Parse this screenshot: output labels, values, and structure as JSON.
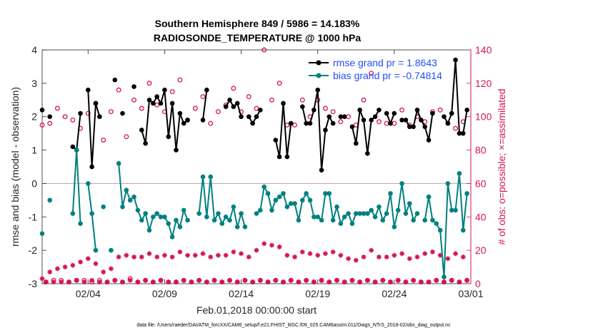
{
  "chart_data": {
    "type": "line",
    "title": "Southern Hemisphere 849 / 5986 = 14.183%",
    "subtitle": "RADIOSONDE_TEMPERATURE @ 1000 hPa",
    "xlabel": "Feb.01,2018 00:00:00 start",
    "ylabel_left": "rmse and bias (model - observation)",
    "ylabel_right": "# of obs: o=possible; ×=assimilated",
    "footer": "data file: /Users/raeder/DAI/ATM_forcXX/CAM6_setup/f.e21.FHIST_BGC.f09_025.CAM6assim.011/Diags_NTrS_2018-02/obs_diag_output.nc",
    "xlim": [
      0,
      28
    ],
    "ylim_left": [
      -3,
      4
    ],
    "ylim_right": [
      0,
      140
    ],
    "xticks": [
      3,
      8,
      13,
      18,
      23,
      28
    ],
    "xtick_labels": [
      "02/04",
      "02/09",
      "02/14",
      "02/19",
      "02/24",
      "03/01"
    ],
    "yticks_left": [
      -3,
      -2,
      -1,
      0,
      1,
      2,
      3,
      4
    ],
    "yticks_right": [
      0,
      20,
      40,
      60,
      80,
      100,
      120,
      140
    ],
    "reference_line_y": 0,
    "legend": [
      {
        "name": "rmse  grand pr = 1.8643",
        "color": "#000000"
      },
      {
        "name": "bias  grand pr = -0.74814",
        "color": "#008080"
      }
    ],
    "series": [
      {
        "name": "rmse",
        "color": "#000000",
        "x": [
          0.0,
          0.25,
          0.5,
          0.75,
          1.0,
          1.25,
          1.5,
          1.75,
          2.0,
          2.25,
          2.5,
          2.75,
          3.0,
          3.25,
          3.5,
          3.75,
          4.0,
          4.25,
          4.5,
          4.75,
          5.0,
          5.25,
          5.5,
          5.75,
          6.0,
          6.25,
          6.5,
          6.75,
          7.0,
          7.25,
          7.5,
          7.75,
          8.0,
          8.25,
          8.5,
          8.75,
          9.0,
          9.25,
          9.5,
          9.75,
          10.0,
          10.25,
          10.5,
          10.75,
          11.0,
          11.25,
          11.5,
          11.75,
          12.0,
          12.25,
          12.5,
          12.75,
          13.0,
          13.25,
          13.5,
          13.75,
          14.0,
          14.25,
          14.5,
          14.75,
          15.0,
          15.25,
          15.5,
          15.75,
          16.0,
          16.25,
          16.5,
          16.75,
          17.0,
          17.25,
          17.5,
          17.75,
          18.0,
          18.25,
          18.5,
          18.75,
          19.0,
          19.25,
          19.5,
          19.75,
          20.0,
          20.25,
          20.5,
          20.75,
          21.0,
          21.25,
          21.5,
          21.75,
          22.0,
          22.25,
          22.5,
          22.75,
          23.0,
          23.25,
          23.5,
          23.75,
          24.0,
          24.25,
          24.5,
          24.75,
          25.0,
          25.25,
          25.5,
          25.75,
          26.0,
          26.25,
          26.5,
          26.75,
          27.0,
          27.25,
          27.5,
          27.75
        ],
        "values": [
          2.2,
          null,
          2.0,
          null,
          null,
          null,
          null,
          null,
          1.1,
          1.0,
          2.1,
          null,
          2.8,
          0.5,
          2.4,
          2.0,
          null,
          null,
          null,
          3.1,
          null,
          2.1,
          null,
          null,
          2.9,
          null,
          1.6,
          1.2,
          2.5,
          2.4,
          2.6,
          2.4,
          2.8,
          1.4,
          2.4,
          1.0,
          2.1,
          1.8,
          1.9,
          null,
          null,
          null,
          1.9,
          2.8,
          null,
          null,
          null,
          null,
          2.3,
          2.5,
          2.3,
          2.4,
          2.0,
          null,
          2.0,
          1.8,
          2.0,
          2.2,
          null,
          null,
          null,
          1.3,
          0.8,
          2.4,
          0.8,
          1.8,
          null,
          null,
          2.3,
          1.8,
          1.8,
          2.2,
          2.8,
          0.4,
          1.6,
          2.0,
          1.8,
          null,
          2.0,
          2.0,
          null,
          1.7,
          1.2,
          2.2,
          1.9,
          0.9,
          1.9,
          2.0,
          2.2,
          null,
          2.1,
          1.8,
          2.1,
          null,
          1.9,
          1.9,
          1.7,
          1.7,
          2.2,
          1.9,
          1.7,
          1.3,
          2.1,
          null,
          null,
          2.0,
          1.8,
          2.1,
          3.7,
          1.5,
          1.5,
          2.2
        ]
      },
      {
        "name": "bias",
        "color": "#008080",
        "x": [
          0.0,
          0.25,
          0.5,
          0.75,
          1.0,
          1.25,
          1.5,
          1.75,
          2.0,
          2.25,
          2.5,
          2.75,
          3.0,
          3.25,
          3.5,
          3.75,
          4.0,
          4.25,
          4.5,
          4.75,
          5.0,
          5.25,
          5.5,
          5.75,
          6.0,
          6.25,
          6.5,
          6.75,
          7.0,
          7.25,
          7.5,
          7.75,
          8.0,
          8.25,
          8.5,
          8.75,
          9.0,
          9.25,
          9.5,
          9.75,
          10.0,
          10.25,
          10.5,
          10.75,
          11.0,
          11.25,
          11.5,
          11.75,
          12.0,
          12.25,
          12.5,
          12.75,
          13.0,
          13.25,
          13.5,
          13.75,
          14.0,
          14.25,
          14.5,
          14.75,
          15.0,
          15.25,
          15.5,
          15.75,
          16.0,
          16.25,
          16.5,
          16.75,
          17.0,
          17.25,
          17.5,
          17.75,
          18.0,
          18.25,
          18.5,
          18.75,
          19.0,
          19.25,
          19.5,
          19.75,
          20.0,
          20.25,
          20.5,
          20.75,
          21.0,
          21.25,
          21.5,
          21.75,
          22.0,
          22.25,
          22.5,
          22.75,
          23.0,
          23.25,
          23.5,
          23.75,
          24.0,
          24.25,
          24.5,
          24.75,
          25.0,
          25.25,
          25.5,
          25.75,
          26.0,
          26.25,
          26.5,
          26.75,
          27.0,
          27.25,
          27.5,
          27.75
        ],
        "values": [
          -1.5,
          null,
          -0.5,
          null,
          null,
          null,
          null,
          null,
          -0.9,
          1.0,
          -1.2,
          null,
          0.0,
          -0.9,
          -2.0,
          null,
          -0.7,
          null,
          -2.0,
          null,
          0.6,
          -0.7,
          -0.2,
          -0.5,
          -0.4,
          -0.8,
          -1.1,
          -0.9,
          -1.4,
          -1.0,
          -0.9,
          -1.0,
          -1.0,
          -1.2,
          -1.6,
          -1.1,
          -1.3,
          -0.8,
          -1.1,
          null,
          null,
          -0.9,
          0.2,
          -1.0,
          0.2,
          -1.1,
          -0.9,
          -1.2,
          -1.0,
          -1.1,
          -0.7,
          -1.3,
          -0.9,
          -1.3,
          null,
          null,
          -0.9,
          -0.8,
          -0.1,
          -0.3,
          -0.8,
          -0.5,
          -0.4,
          -0.3,
          -0.7,
          -0.6,
          -0.6,
          -1.1,
          -0.5,
          -0.3,
          -0.5,
          -1.0,
          -1.0,
          -1.1,
          -0.3,
          -0.3,
          -1.1,
          -0.7,
          -1.2,
          -1.0,
          -0.9,
          -1.2,
          -0.9,
          -0.9,
          -0.9,
          -0.9,
          -0.8,
          -1.0,
          -0.7,
          -1.1,
          -0.9,
          -0.3,
          -1.3,
          -0.8,
          0.0,
          -0.9,
          -0.6,
          -1.1,
          -0.9,
          null,
          -1.1,
          -0.4,
          -1.1,
          -1.2,
          -1.4,
          -2.8,
          0.0,
          -0.8,
          -0.8,
          0.3,
          -1.4,
          -0.3
        ]
      },
      {
        "name": "possible",
        "color": "#d4145a",
        "marker": "o",
        "axis": "right",
        "x": [
          0.0,
          0.25,
          0.5,
          0.75,
          1.0,
          1.25,
          1.5,
          1.75,
          2.0,
          2.25,
          2.5,
          2.75,
          3.0,
          3.25,
          3.5,
          3.75,
          4.0,
          4.25,
          4.5,
          4.75,
          5.0,
          5.25,
          5.5,
          5.75,
          6.0,
          6.25,
          6.5,
          6.75,
          7.0,
          7.25,
          7.5,
          7.75,
          8.0,
          8.25,
          8.5,
          8.75,
          9.0,
          9.25,
          9.5,
          9.75,
          10.0,
          10.25,
          10.5,
          10.75,
          11.0,
          11.25,
          11.5,
          11.75,
          12.0,
          12.25,
          12.5,
          12.75,
          13.0,
          13.25,
          13.5,
          13.75,
          14.0,
          14.25,
          14.5,
          14.75,
          15.0,
          15.25,
          15.5,
          15.75,
          16.0,
          16.25,
          16.5,
          16.75,
          17.0,
          17.25,
          17.5,
          17.75,
          18.0,
          18.25,
          18.5,
          18.75,
          19.0,
          19.25,
          19.5,
          19.75,
          20.0,
          20.25,
          20.5,
          20.75,
          21.0,
          21.25,
          21.5,
          21.75,
          22.0,
          22.25,
          22.5,
          22.75,
          23.0,
          23.25,
          23.5,
          23.75,
          24.0,
          24.25,
          24.5,
          24.75,
          25.0,
          25.25,
          25.5,
          25.75,
          26.0,
          26.25,
          26.5,
          26.75,
          27.0,
          27.25,
          27.5,
          27.75
        ],
        "values": [
          95,
          1,
          96,
          2,
          105,
          2,
          100,
          1,
          98,
          2,
          93,
          2,
          102,
          1,
          108,
          2,
          86,
          1,
          103,
          2,
          116,
          1,
          88,
          3,
          110,
          1,
          105,
          2,
          120,
          1,
          107,
          2,
          103,
          1,
          115,
          1,
          122,
          2,
          98,
          1,
          105,
          2,
          112,
          1,
          96,
          2,
          103,
          1,
          107,
          2,
          117,
          1,
          103,
          2,
          112,
          1,
          105,
          2,
          140,
          1,
          110,
          2,
          120,
          1,
          95,
          2,
          95,
          1,
          110,
          2,
          100,
          1,
          110,
          2,
          105,
          1,
          103,
          2,
          97,
          1,
          100,
          2,
          95,
          1,
          110,
          2,
          126,
          1,
          97,
          2,
          96,
          1,
          96,
          2,
          104,
          1,
          95,
          2,
          100,
          1,
          97,
          1,
          103,
          2,
          104,
          1,
          96,
          2,
          93,
          1,
          97,
          2
        ]
      },
      {
        "name": "assimilated",
        "color": "#d4145a",
        "marker": "*",
        "axis": "right",
        "x": [
          0.0,
          0.25,
          0.5,
          0.75,
          1.0,
          1.25,
          1.5,
          1.75,
          2.0,
          2.25,
          2.5,
          2.75,
          3.0,
          3.25,
          3.5,
          3.75,
          4.0,
          4.25,
          4.5,
          4.75,
          5.0,
          5.25,
          5.5,
          5.75,
          6.0,
          6.25,
          6.5,
          6.75,
          7.0,
          7.25,
          7.5,
          7.75,
          8.0,
          8.25,
          8.5,
          8.75,
          9.0,
          9.25,
          9.5,
          9.75,
          10.0,
          10.25,
          10.5,
          10.75,
          11.0,
          11.25,
          11.5,
          11.75,
          12.0,
          12.25,
          12.5,
          12.75,
          13.0,
          13.25,
          13.5,
          13.75,
          14.0,
          14.25,
          14.5,
          14.75,
          15.0,
          15.25,
          15.5,
          15.75,
          16.0,
          16.25,
          16.5,
          16.75,
          17.0,
          17.25,
          17.5,
          17.75,
          18.0,
          18.25,
          18.5,
          18.75,
          19.0,
          19.25,
          19.5,
          19.75,
          20.0,
          20.25,
          20.5,
          20.75,
          21.0,
          21.25,
          21.5,
          21.75,
          22.0,
          22.25,
          22.5,
          22.75,
          23.0,
          23.25,
          23.5,
          23.75,
          24.0,
          24.25,
          24.5,
          24.75,
          25.0,
          25.25,
          25.5,
          25.75,
          26.0,
          26.25,
          26.5,
          26.75,
          27.0,
          27.25,
          27.5,
          27.75
        ],
        "values": [
          3,
          1,
          7,
          1,
          9,
          1,
          10,
          1,
          11,
          2,
          13,
          1,
          15,
          2,
          12,
          1,
          7,
          1,
          9,
          2,
          16,
          1,
          17,
          2,
          16,
          1,
          16,
          2,
          18,
          1,
          16,
          2,
          17,
          1,
          16,
          1,
          19,
          2,
          17,
          1,
          17,
          2,
          18,
          1,
          16,
          2,
          17,
          1,
          17,
          2,
          19,
          1,
          18,
          2,
          16,
          1,
          20,
          2,
          24,
          1,
          23,
          2,
          22,
          1,
          17,
          2,
          16,
          1,
          19,
          2,
          18,
          1,
          17,
          2,
          18,
          1,
          19,
          2,
          17,
          1,
          15,
          2,
          14,
          1,
          16,
          2,
          20,
          1,
          16,
          2,
          16,
          1,
          17,
          2,
          18,
          1,
          15,
          2,
          16,
          1,
          18,
          1,
          19,
          2,
          17,
          1,
          15,
          2,
          18,
          1,
          16,
          2
        ]
      }
    ]
  }
}
